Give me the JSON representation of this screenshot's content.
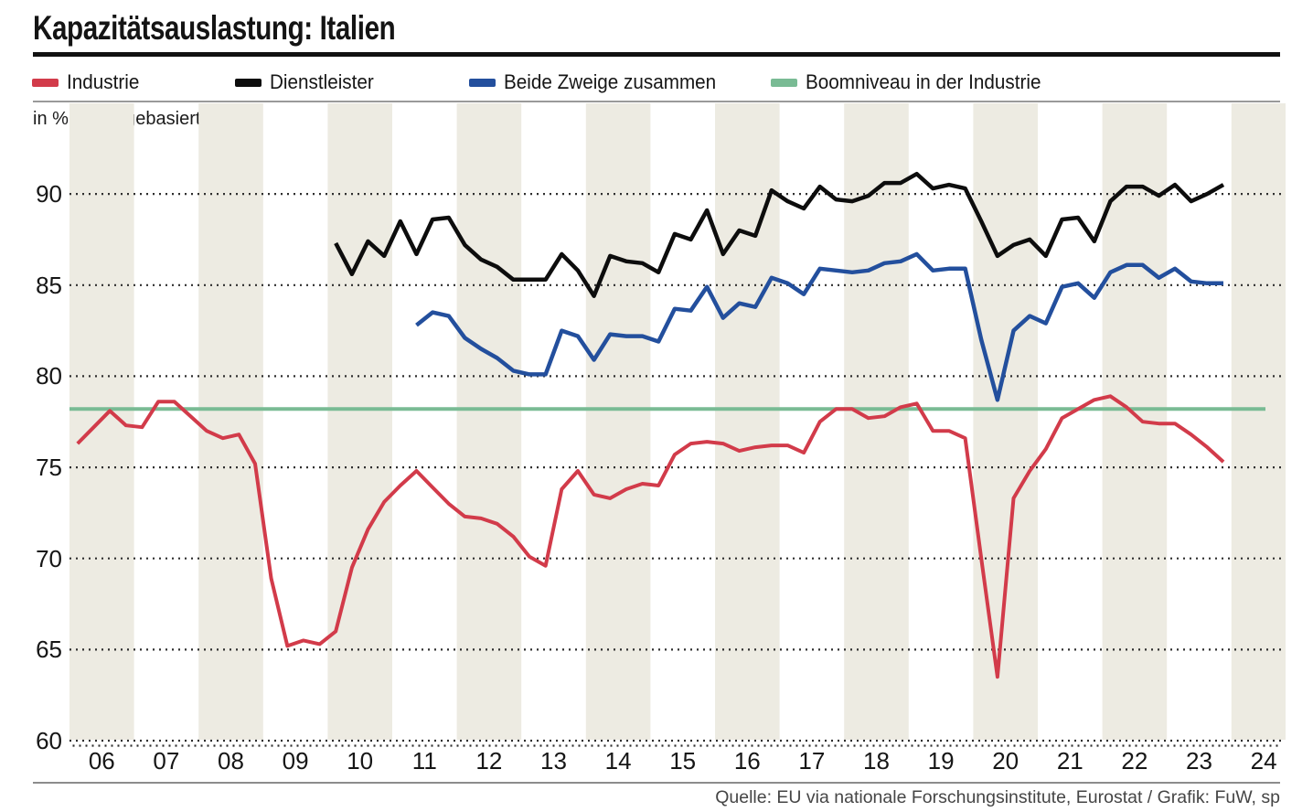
{
  "header": {
    "title": "Kapazitätsauslastung: Italien",
    "unit_label": "in %, umfragebasiert"
  },
  "legend": {
    "items": [
      {
        "label": "Industrie",
        "color": "#d23b4a"
      },
      {
        "label": "Dienstleister",
        "color": "#0d0d0d"
      },
      {
        "label": "Beide Zweige zusammen",
        "color": "#234f9d"
      },
      {
        "label": "Boomniveau in der Industrie",
        "color": "#79bb94"
      }
    ]
  },
  "footer": {
    "source": "Quelle: EU via nationale Forschungsinstitute, Eurostat / Grafik: FuW, sp"
  },
  "chart_data": {
    "type": "line",
    "title": "Kapazitätsauslastung: Italien",
    "ylabel": "in %, umfragebasiert",
    "frequency": "quarterly",
    "ylim": [
      60,
      92.5
    ],
    "grid": "dotted horizontal lines at ticks",
    "legend_position": "top",
    "y_ticks": [
      90,
      85,
      80,
      75,
      70,
      65,
      60
    ],
    "x_ticks": [
      "06",
      "07",
      "08",
      "09",
      "10",
      "11",
      "12",
      "13",
      "14",
      "15",
      "16",
      "17",
      "18",
      "19",
      "20",
      "21",
      "22",
      "23",
      "24"
    ],
    "stripe_years": [
      2006,
      2008,
      2010,
      2012,
      2014,
      2016,
      2018,
      2020,
      2022,
      2024
    ],
    "stripe_color": "#edebe2",
    "series": [
      {
        "name": "Industrie",
        "color": "#d23b4a",
        "start_year": 2006,
        "start_quarter": 1,
        "values": [
          76.3,
          77.2,
          78.1,
          77.3,
          77.2,
          78.6,
          78.6,
          77.8,
          77.0,
          76.6,
          76.8,
          75.2,
          68.9,
          65.2,
          65.5,
          65.3,
          66.0,
          69.5,
          71.6,
          73.1,
          74.0,
          74.8,
          73.9,
          73.0,
          72.3,
          72.2,
          71.9,
          71.2,
          70.1,
          69.6,
          73.8,
          74.8,
          73.5,
          73.3,
          73.8,
          74.1,
          74.0,
          75.7,
          76.3,
          76.4,
          76.3,
          75.9,
          76.1,
          76.2,
          76.2,
          75.8,
          77.5,
          78.2,
          78.2,
          77.7,
          77.8,
          78.3,
          78.5,
          77.0,
          77.0,
          76.6,
          70.0,
          63.5,
          73.3,
          74.8,
          76.0,
          77.7,
          78.2,
          78.7,
          78.9,
          78.3,
          77.5,
          77.4,
          77.4,
          76.8,
          76.1,
          75.3
        ]
      },
      {
        "name": "Dienstleister",
        "color": "#0d0d0d",
        "start_year": 2010,
        "start_quarter": 1,
        "values": [
          87.3,
          85.6,
          87.4,
          86.6,
          88.5,
          86.7,
          88.6,
          88.7,
          87.2,
          86.4,
          86.0,
          85.3,
          85.3,
          85.3,
          86.7,
          85.8,
          84.4,
          86.6,
          86.3,
          86.2,
          85.7,
          87.8,
          87.5,
          89.1,
          86.7,
          88.0,
          87.7,
          90.2,
          89.6,
          89.2,
          90.4,
          89.7,
          89.6,
          89.9,
          90.6,
          90.6,
          91.1,
          90.3,
          90.5,
          90.3,
          88.5,
          86.6,
          87.2,
          87.5,
          86.6,
          88.6,
          88.7,
          87.4,
          89.6,
          90.4,
          90.4,
          89.9,
          90.5,
          89.6,
          90.0,
          90.5
        ]
      },
      {
        "name": "Beide Zweige zusammen",
        "color": "#234f9d",
        "start_year": 2011,
        "start_quarter": 2,
        "values": [
          82.8,
          83.5,
          83.3,
          82.1,
          81.5,
          81.0,
          80.3,
          80.1,
          80.1,
          82.5,
          82.2,
          80.9,
          82.3,
          82.2,
          82.2,
          81.9,
          83.7,
          83.6,
          84.9,
          83.2,
          84.0,
          83.8,
          85.4,
          85.1,
          84.5,
          85.9,
          85.8,
          85.7,
          85.8,
          86.2,
          86.3,
          86.7,
          85.8,
          85.9,
          85.9,
          82.0,
          78.7,
          82.5,
          83.3,
          82.9,
          84.9,
          85.1,
          84.3,
          85.7,
          86.1,
          86.1,
          85.4,
          85.9,
          85.2,
          85.1,
          85.1
        ]
      }
    ],
    "reference_line": {
      "name": "Boomniveau in der Industrie",
      "value": 78.2,
      "color": "#79bb94"
    }
  }
}
